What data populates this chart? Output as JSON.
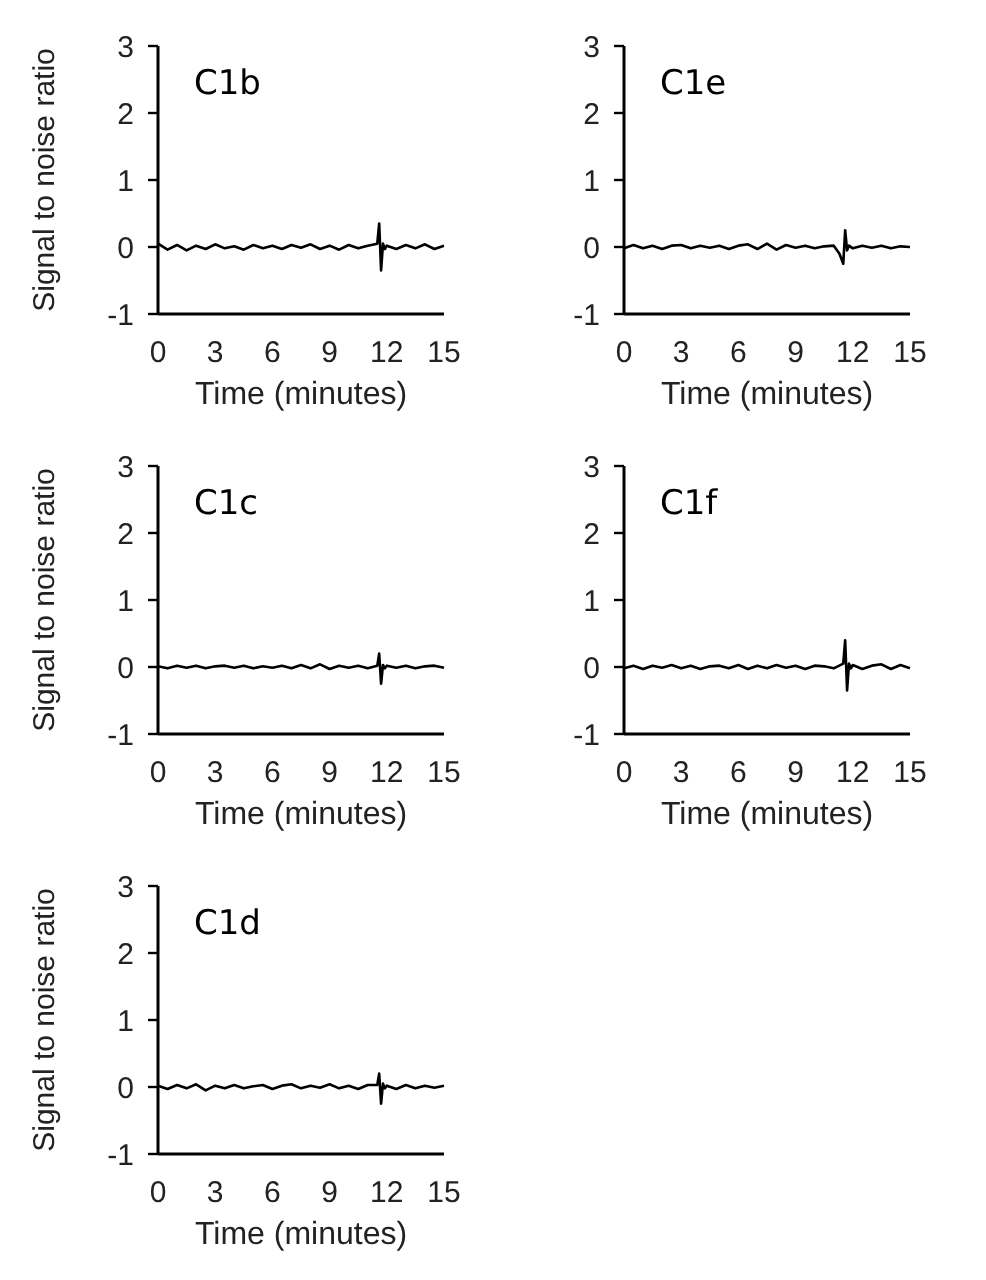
{
  "chart_data": [
    {
      "type": "line",
      "title": "C1b",
      "xlabel": "Time (minutes)",
      "ylabel": "Signal to noise ratio",
      "xlim": [
        0,
        15
      ],
      "xticks": [
        0,
        3,
        6,
        9,
        12,
        15
      ],
      "ylim": [
        -1,
        3
      ],
      "yticks": [
        -1,
        0,
        1,
        2,
        3
      ],
      "x": [
        0,
        0.5,
        1,
        1.5,
        2,
        2.5,
        3,
        3.5,
        4,
        4.5,
        5,
        5.5,
        6,
        6.5,
        7,
        7.5,
        8,
        8.5,
        9,
        9.5,
        10,
        10.5,
        11,
        11.5,
        11.6,
        11.7,
        11.8,
        11.9,
        12,
        12.5,
        13,
        13.5,
        14,
        14.5,
        15
      ],
      "series": [
        {
          "color": "#000000",
          "values": [
            0.05,
            -0.04,
            0.03,
            -0.05,
            0.02,
            -0.03,
            0.04,
            -0.02,
            0.01,
            -0.04,
            0.03,
            -0.02,
            0.02,
            -0.03,
            0.03,
            -0.01,
            0.04,
            -0.03,
            0.02,
            -0.04,
            0.03,
            -0.02,
            0.02,
            0.05,
            0.35,
            -0.35,
            0.05,
            -0.03,
            0.02,
            -0.03,
            0.03,
            -0.02,
            0.04,
            -0.03,
            0.02
          ]
        }
      ]
    },
    {
      "type": "line",
      "title": "C1e",
      "xlabel": "Time (minutes)",
      "xlim": [
        0,
        15
      ],
      "xticks": [
        0,
        3,
        6,
        9,
        12,
        15
      ],
      "ylim": [
        -1,
        3
      ],
      "yticks": [
        -1,
        0,
        1,
        2,
        3
      ],
      "x": [
        0,
        0.5,
        1,
        1.5,
        2,
        2.5,
        3,
        3.5,
        4,
        4.5,
        5,
        5.5,
        6,
        6.5,
        7,
        7.5,
        8,
        8.5,
        9,
        9.5,
        10,
        10.5,
        11,
        11.3,
        11.5,
        11.6,
        11.7,
        11.8,
        12,
        12.5,
        13,
        13.5,
        14,
        14.5,
        15
      ],
      "series": [
        {
          "color": "#000000",
          "values": [
            -0.02,
            0.03,
            -0.02,
            0.02,
            -0.03,
            0.02,
            0.03,
            -0.02,
            0.02,
            -0.01,
            0.02,
            -0.03,
            0.02,
            0.04,
            -0.03,
            0.05,
            -0.04,
            0.03,
            -0.01,
            0.02,
            -0.02,
            0.01,
            0.02,
            -0.1,
            -0.25,
            0.25,
            -0.05,
            0.02,
            -0.02,
            0.02,
            -0.01,
            0.02,
            -0.02,
            0.01,
            0
          ]
        }
      ]
    },
    {
      "type": "line",
      "title": "C1c",
      "xlabel": "Time (minutes)",
      "ylabel": "Signal to noise ratio",
      "xlim": [
        0,
        15
      ],
      "xticks": [
        0,
        3,
        6,
        9,
        12,
        15
      ],
      "ylim": [
        -1,
        3
      ],
      "yticks": [
        -1,
        0,
        1,
        2,
        3
      ],
      "x": [
        0,
        0.5,
        1,
        1.5,
        2,
        2.5,
        3,
        3.5,
        4,
        4.5,
        5,
        5.5,
        6,
        6.5,
        7,
        7.5,
        8,
        8.5,
        9,
        9.5,
        10,
        10.5,
        11,
        11.5,
        11.6,
        11.7,
        11.8,
        11.9,
        12,
        12.5,
        13,
        13.5,
        14,
        14.5,
        15
      ],
      "series": [
        {
          "color": "#000000",
          "values": [
            0.01,
            -0.02,
            0.02,
            -0.01,
            0.02,
            -0.02,
            0.01,
            0.02,
            -0.01,
            0.02,
            -0.02,
            0.01,
            -0.01,
            0.02,
            -0.02,
            0.03,
            -0.02,
            0.04,
            -0.03,
            0.02,
            -0.01,
            0.02,
            -0.02,
            0.02,
            0.2,
            -0.25,
            0.03,
            -0.02,
            0.02,
            -0.01,
            0.02,
            -0.02,
            0.01,
            0.02,
            -0.01
          ]
        }
      ]
    },
    {
      "type": "line",
      "title": "C1f",
      "xlabel": "Time (minutes)",
      "xlim": [
        0,
        15
      ],
      "xticks": [
        0,
        3,
        6,
        9,
        12,
        15
      ],
      "ylim": [
        -1,
        3
      ],
      "yticks": [
        -1,
        0,
        1,
        2,
        3
      ],
      "x": [
        0,
        0.5,
        1,
        1.5,
        2,
        2.5,
        3,
        3.5,
        4,
        4.5,
        5,
        5.5,
        6,
        6.5,
        7,
        7.5,
        8,
        8.5,
        9,
        9.5,
        10,
        10.5,
        11,
        11.5,
        11.6,
        11.7,
        11.8,
        11.9,
        12,
        12.5,
        13,
        13.5,
        14,
        14.5,
        15
      ],
      "series": [
        {
          "color": "#000000",
          "values": [
            -0.02,
            0.02,
            -0.03,
            0.02,
            -0.01,
            0.03,
            -0.02,
            0.02,
            -0.03,
            0.01,
            0.02,
            -0.02,
            0.03,
            -0.03,
            0.02,
            -0.02,
            0.03,
            -0.01,
            0.02,
            -0.03,
            0.02,
            0.01,
            -0.02,
            0.05,
            0.4,
            -0.35,
            0.05,
            -0.02,
            0.03,
            -0.03,
            0.02,
            0.04,
            -0.03,
            0.03,
            -0.02
          ]
        }
      ]
    },
    {
      "type": "line",
      "title": "C1d",
      "xlabel": "Time (minutes)",
      "ylabel": "Signal to noise ratio",
      "xlim": [
        0,
        15
      ],
      "xticks": [
        0,
        3,
        6,
        9,
        12,
        15
      ],
      "ylim": [
        -1,
        3
      ],
      "yticks": [
        -1,
        0,
        1,
        2,
        3
      ],
      "x": [
        0,
        0.5,
        1,
        1.5,
        2,
        2.5,
        3,
        3.5,
        4,
        4.5,
        5,
        5.5,
        6,
        6.5,
        7,
        7.5,
        8,
        8.5,
        9,
        9.5,
        10,
        10.5,
        11,
        11.5,
        11.6,
        11.7,
        11.8,
        11.9,
        12,
        12.5,
        13,
        13.5,
        14,
        14.5,
        15
      ],
      "series": [
        {
          "color": "#000000",
          "values": [
            0.02,
            -0.03,
            0.03,
            -0.02,
            0.04,
            -0.05,
            0.02,
            -0.02,
            0.03,
            -0.02,
            0.01,
            0.03,
            -0.03,
            0.02,
            0.04,
            -0.02,
            0.02,
            -0.01,
            0.04,
            -0.02,
            0.02,
            -0.03,
            0.03,
            0.03,
            0.2,
            -0.25,
            0.05,
            -0.02,
            0.02,
            -0.03,
            0.03,
            -0.02,
            0.02,
            -0.01,
            0.02
          ]
        }
      ]
    }
  ]
}
